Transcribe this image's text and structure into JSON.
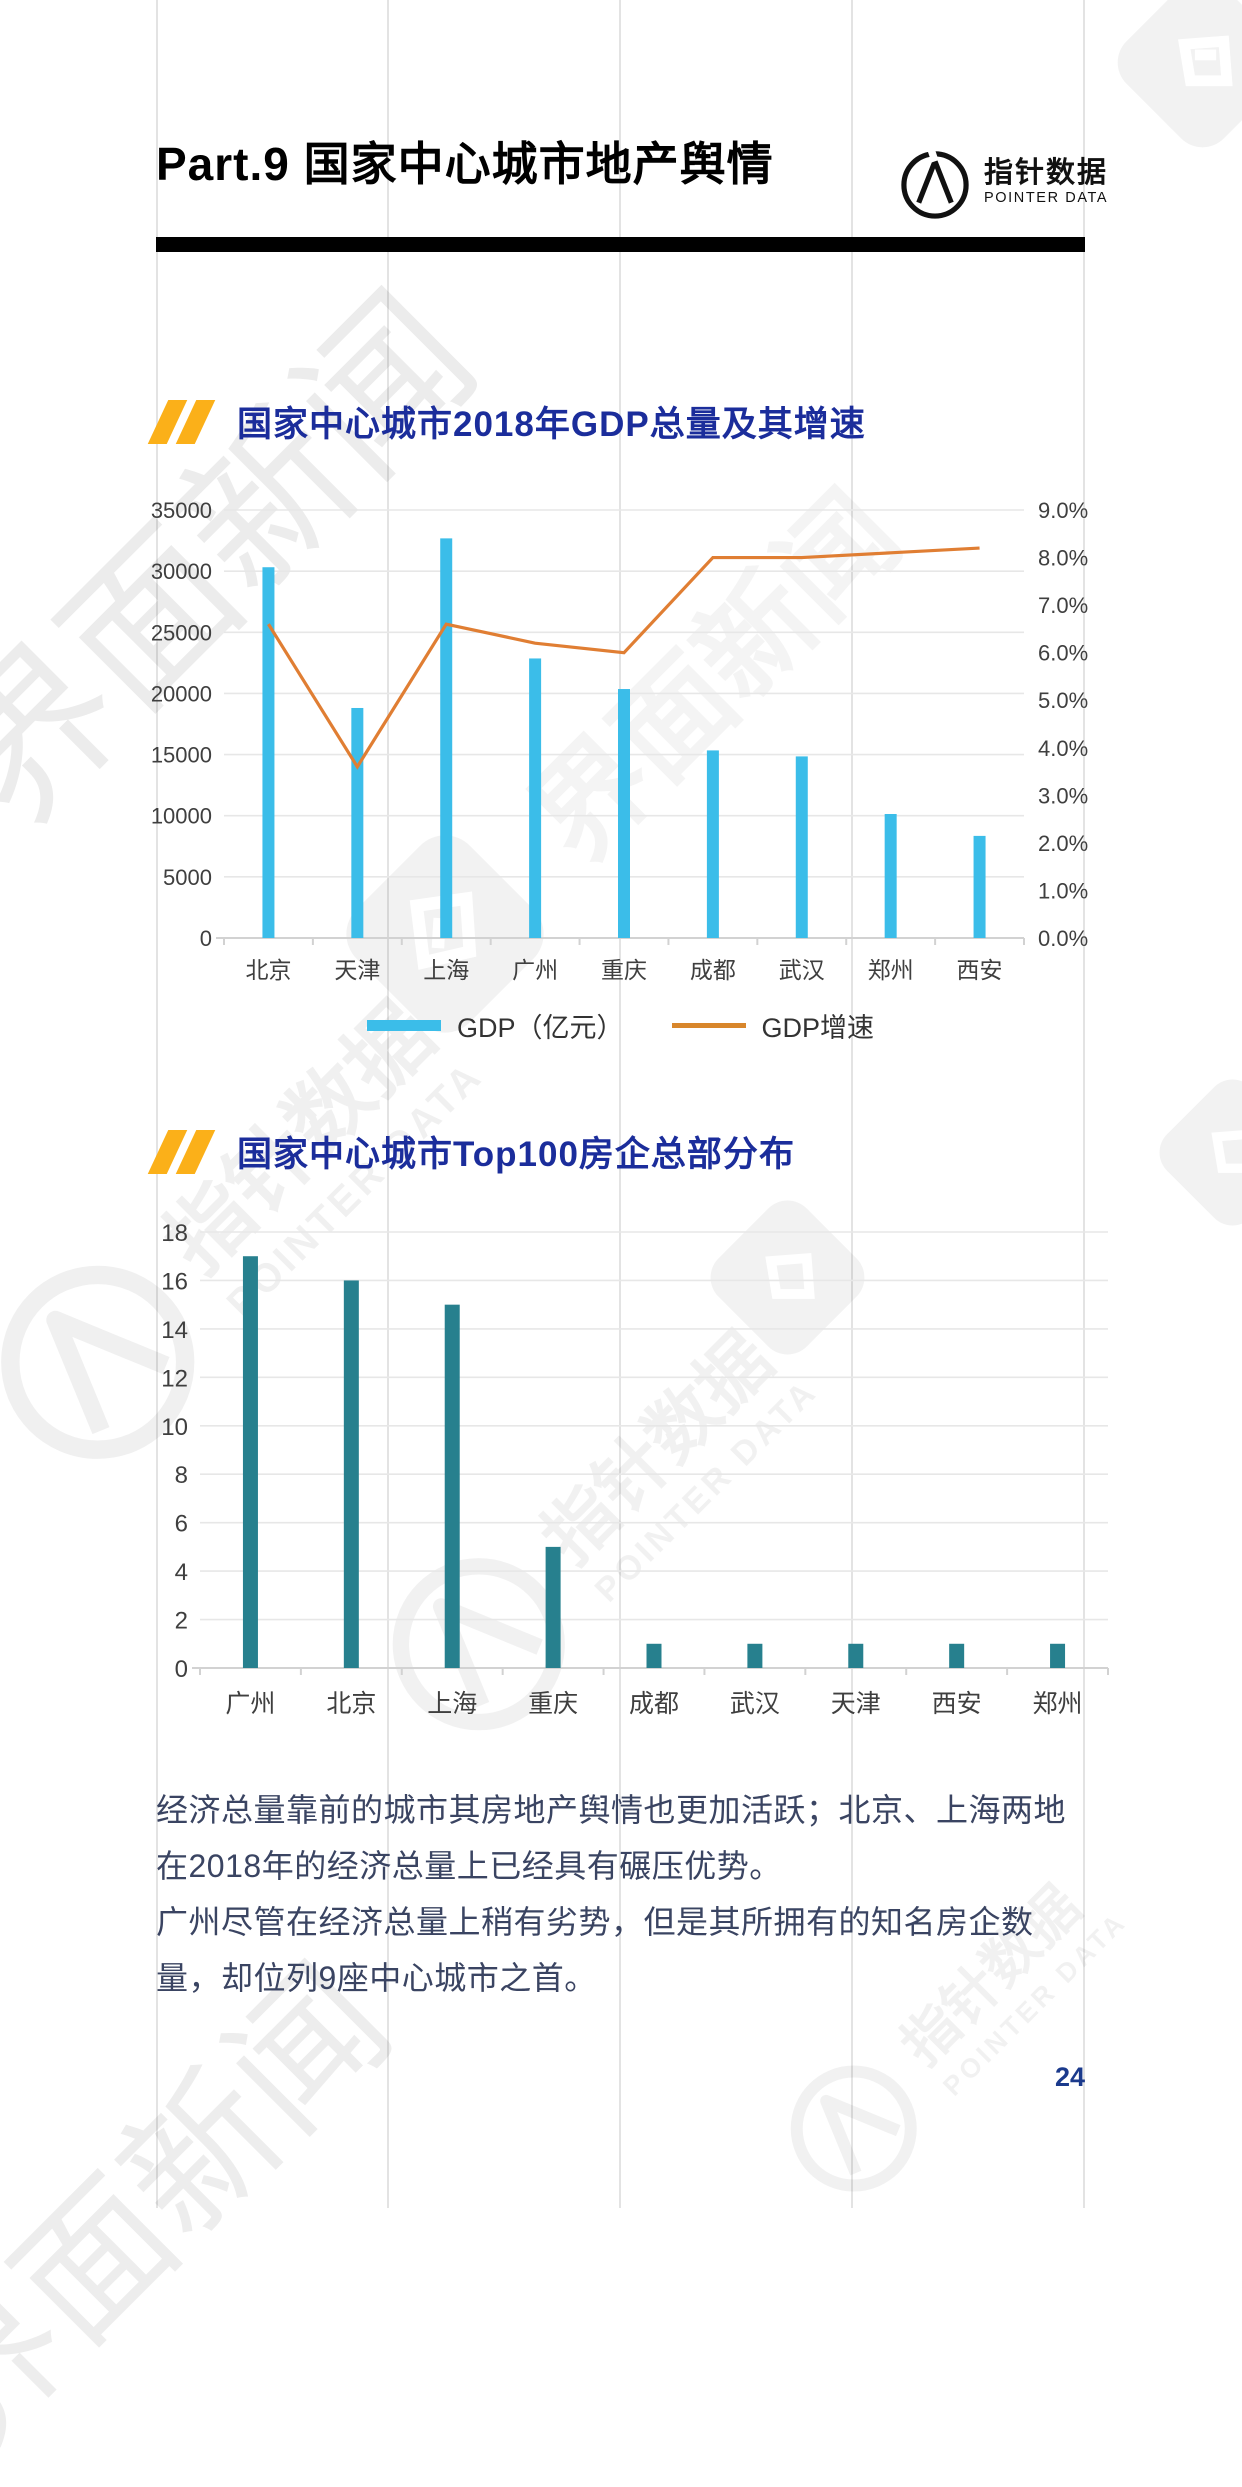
{
  "page": {
    "header": {
      "title": "Part.9 国家中心城市地产舆情",
      "logo_text": "指针数据",
      "logo_subtext": "POINTER DATA"
    },
    "watermarks": {
      "jiemian": "界面新闻",
      "pointer_cn": "指针数据",
      "pointer_en": "POINTER DATA"
    },
    "paragraphs": {
      "p1": "经济总量靠前的城市其房地产舆情也更加活跃；北京、上海两地在2018年的经济总量上已经具有碾压优势。",
      "p2": "广州尽管在经济总量上稍有劣势，但是其所拥有的知名房企数量，却位列9座中心城市之首。"
    },
    "footer": {
      "page_number": "24"
    }
  },
  "colors": {
    "bar_cyan": "#3BBDE9",
    "line_orange": "#E07E33",
    "legend_line_orange": "#D8862B",
    "bar_teal": "#27808E",
    "title_blue": "#1B2D9B",
    "slash_amber": "#FBB019",
    "axis_text": "#3F3F3F",
    "gridline": "#E7E7E7",
    "axis_line": "#D2D2D2"
  },
  "chart_data": [
    {
      "type": "bar",
      "subtype": "bar+line dual axis",
      "title": "国家中心城市2018年GDP总量及其增速",
      "categories": [
        "北京",
        "天津",
        "上海",
        "广州",
        "重庆",
        "成都",
        "武汉",
        "郑州",
        "西安"
      ],
      "series": [
        {
          "name": "GDP（亿元）",
          "type": "bar",
          "axis": "left",
          "color": "#3BBDE9",
          "values": [
            30320,
            18810,
            32680,
            22860,
            20360,
            15340,
            14850,
            10140,
            8350
          ]
        },
        {
          "name": "GDP增速",
          "type": "line",
          "axis": "right",
          "color": "#E07E33",
          "values": [
            6.6,
            3.6,
            6.6,
            6.2,
            6.0,
            8.0,
            8.0,
            8.1,
            8.2
          ]
        }
      ],
      "left_axis": {
        "min": 0,
        "max": 35000,
        "step": 5000,
        "tick_labels": [
          "0",
          "5000",
          "10000",
          "15000",
          "20000",
          "25000",
          "30000",
          "35000"
        ]
      },
      "right_axis": {
        "min": 0,
        "max": 9,
        "step": 1,
        "tick_labels": [
          "0.0%",
          "1.0%",
          "2.0%",
          "3.0%",
          "4.0%",
          "5.0%",
          "6.0%",
          "7.0%",
          "8.0%",
          "9.0%"
        ]
      },
      "grid": true,
      "legend_position": "bottom"
    },
    {
      "type": "bar",
      "title": "国家中心城市Top100房企总部分布",
      "categories": [
        "广州",
        "北京",
        "上海",
        "重庆",
        "成都",
        "武汉",
        "天津",
        "西安",
        "郑州"
      ],
      "values": [
        17,
        16,
        15,
        5,
        1,
        1,
        1,
        1,
        1
      ],
      "color": "#27808E",
      "ylim": [
        0,
        18
      ],
      "ystep": 2,
      "tick_labels": [
        "0",
        "2",
        "4",
        "6",
        "8",
        "10",
        "12",
        "14",
        "16",
        "18"
      ],
      "grid": true,
      "legend_position": "none"
    }
  ]
}
